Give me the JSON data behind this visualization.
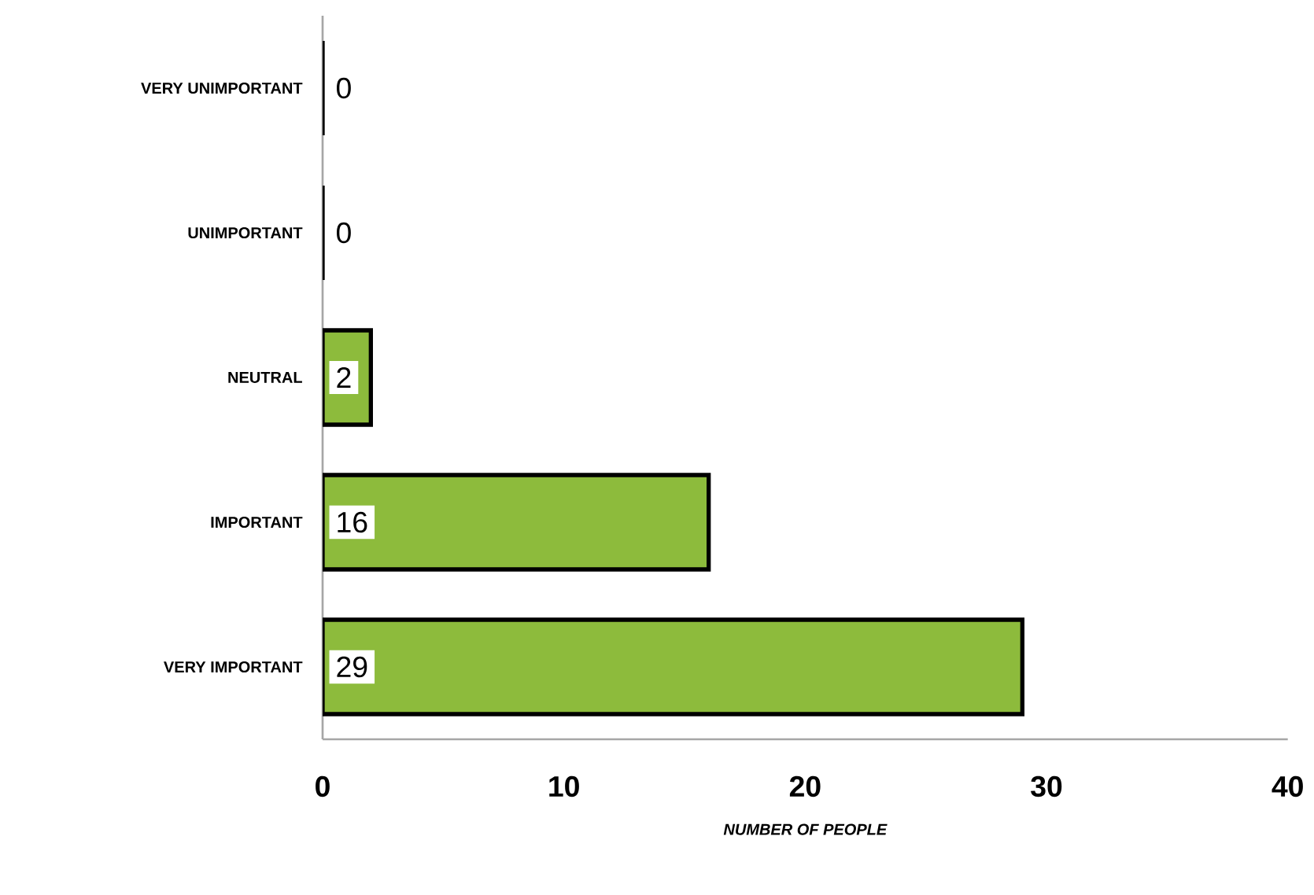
{
  "chart_data": {
    "type": "bar",
    "orientation": "horizontal",
    "xlabel": "NUMBER OF PEOPLE",
    "categories": [
      "VERY UNIMPORTANT",
      "UNIMPORTANT",
      "NEUTRAL",
      "IMPORTANT",
      "VERY IMPORTANT"
    ],
    "values": [
      0,
      0,
      2,
      16,
      29
    ],
    "color": "#8dbb3c",
    "xlim": [
      0,
      40
    ],
    "xticks": [
      0,
      10,
      20,
      30,
      40
    ],
    "data_labels": true,
    "grid": false
  }
}
